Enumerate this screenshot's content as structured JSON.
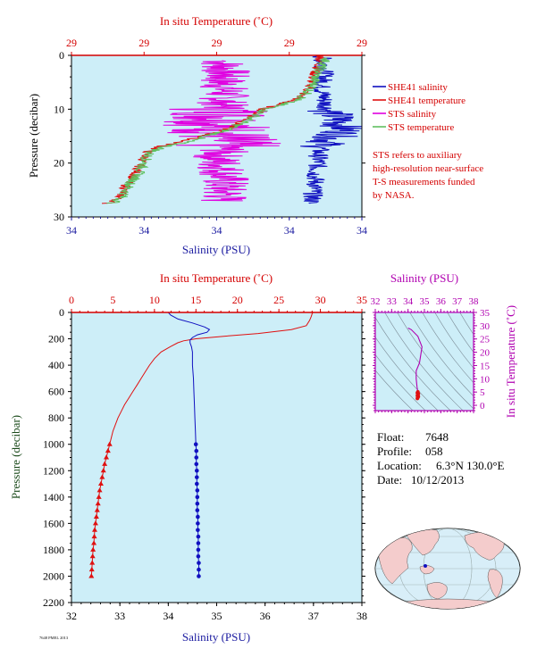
{
  "colors": {
    "plot_bg": "#cdeef8",
    "salinity": "#1010c0",
    "temperature": "#e01010",
    "sts_salinity": "#e000e0",
    "sts_temperature": "#60c060",
    "ts_accent": "#b000b0",
    "pressure_label": "#1a4a1a"
  },
  "info": {
    "float_label": "Float:",
    "float_value": "7648",
    "profile_label": "Profile:",
    "profile_value": "058",
    "location_label": "Location:",
    "location_value": "6.3°N  130.0°E",
    "date_label": "Date:",
    "date_value": "10/12/2013"
  },
  "note": {
    "lines": [
      "STS refers to auxiliary",
      "high-resolution near-surface",
      "T-S measurements funded",
      "by NASA."
    ]
  },
  "footer": {
    "text": "7648 PMEL 2013"
  },
  "chart_data": [
    {
      "id": "near-surface",
      "type": "line",
      "title": "",
      "top_axis_label": "In situ Temperature (˚C)",
      "top_ticks": [
        "29",
        "29",
        "29",
        "29",
        "29"
      ],
      "bottom_axis_label": "Salinity (PSU)",
      "bottom_ticks": [
        "34",
        "34",
        "34",
        "34",
        "34"
      ],
      "ylabel": "Pressure (decibar)",
      "y_ticks": [
        0,
        10,
        20,
        30
      ],
      "ylim": [
        0,
        30
      ],
      "legend_position": "right",
      "legend": [
        {
          "label": "SHE41 salinity",
          "color": "#1010c0"
        },
        {
          "label": "SHE41 temperature",
          "color": "#e01010"
        },
        {
          "label": "STS salinity",
          "color": "#e000e0"
        },
        {
          "label": "STS temperature",
          "color": "#60c060"
        }
      ],
      "series": [
        {
          "name": "SHE41 salinity",
          "x_frac": [
            0.86,
            0.87,
            0.87,
            0.86,
            0.87,
            0.88,
            0.92,
            0.94,
            0.88,
            0.86,
            0.85,
            0.85,
            0.84,
            0.84,
            0.83,
            0.83,
            0.82
          ],
          "p": [
            0,
            2,
            4,
            6,
            8,
            10,
            12,
            14,
            16,
            17,
            18,
            20,
            22,
            24,
            26,
            27,
            27.5
          ]
        },
        {
          "name": "SHE41 temperature",
          "x_frac": [
            0.86,
            0.85,
            0.83,
            0.82,
            0.78,
            0.66,
            0.6,
            0.52,
            0.38,
            0.3,
            0.26,
            0.24,
            0.22,
            0.19,
            0.17,
            0.15,
            0.12
          ],
          "p": [
            0,
            2,
            4,
            6,
            8,
            10,
            12,
            14,
            16,
            17,
            18,
            20,
            22,
            24,
            26,
            27,
            27.5
          ]
        },
        {
          "name": "STS salinity",
          "x_frac": [
            0.52,
            0.53,
            0.52,
            0.53,
            0.52,
            0.53,
            0.51,
            0.52,
            0.53,
            0.52,
            0.5,
            0.52,
            0.53,
            0.52,
            0.53,
            0.52
          ],
          "p": [
            1,
            3,
            5,
            7,
            9,
            11,
            13,
            15,
            17,
            18,
            19,
            21,
            23,
            25,
            26,
            27
          ]
        },
        {
          "name": "STS temperature",
          "x_frac": [
            0.88,
            0.86,
            0.84,
            0.83,
            0.79,
            0.67,
            0.61,
            0.53,
            0.4,
            0.32,
            0.27,
            0.25,
            0.23,
            0.2,
            0.18,
            0.16,
            0.14
          ],
          "p": [
            0.5,
            2,
            4,
            6,
            8,
            10,
            12,
            14,
            16,
            17,
            18,
            20,
            22,
            24,
            26,
            27,
            27.5
          ]
        }
      ]
    },
    {
      "id": "full-profile",
      "type": "line",
      "title": "",
      "top_axis_label": "In situ Temperature (˚C)",
      "temp_ticks": [
        0,
        5,
        10,
        15,
        20,
        25,
        30,
        35
      ],
      "temp_lim": [
        0,
        35
      ],
      "bottom_axis_label": "Salinity (PSU)",
      "sal_ticks": [
        32,
        33,
        34,
        35,
        36,
        37,
        38
      ],
      "sal_lim": [
        32,
        38
      ],
      "ylabel": "Pressure (decibar)",
      "y_ticks": [
        0,
        200,
        400,
        600,
        800,
        1000,
        1200,
        1400,
        1600,
        1800,
        2000,
        2200
      ],
      "ylim": [
        0,
        2200
      ],
      "series": [
        {
          "name": "temperature",
          "p": [
            0,
            10,
            30,
            60,
            100,
            130,
            160,
            180,
            200,
            215,
            230,
            260,
            300,
            350,
            400,
            450,
            500,
            550,
            600,
            650,
            700,
            750,
            800,
            850,
            900,
            950,
            1000
          ],
          "v": [
            29.1,
            29.0,
            28.9,
            28.7,
            28.3,
            26.5,
            22.5,
            18.5,
            15.0,
            13.5,
            12.8,
            11.9,
            10.8,
            10.0,
            9.4,
            8.9,
            8.4,
            7.9,
            7.4,
            6.9,
            6.4,
            6.0,
            5.6,
            5.3,
            5.0,
            4.8,
            4.6
          ]
        },
        {
          "name": "temperature-deep-points",
          "p": [
            1000,
            1050,
            1100,
            1150,
            1200,
            1250,
            1300,
            1350,
            1400,
            1450,
            1500,
            1550,
            1600,
            1650,
            1700,
            1750,
            1800,
            1850,
            1900,
            1950,
            2000
          ],
          "v": [
            4.6,
            4.4,
            4.2,
            4.0,
            3.85,
            3.7,
            3.55,
            3.4,
            3.3,
            3.2,
            3.1,
            3.0,
            2.9,
            2.8,
            2.75,
            2.7,
            2.6,
            2.55,
            2.5,
            2.45,
            2.4
          ]
        },
        {
          "name": "salinity",
          "p": [
            0,
            20,
            50,
            80,
            110,
            130,
            150,
            170,
            190,
            210,
            230,
            260,
            300,
            400,
            500,
            600,
            700,
            800,
            900,
            1000
          ],
          "v": [
            34.0,
            34.05,
            34.2,
            34.5,
            34.75,
            34.85,
            34.8,
            34.6,
            34.5,
            34.45,
            34.45,
            34.48,
            34.5,
            34.5,
            34.52,
            34.53,
            34.54,
            34.55,
            34.56,
            34.57
          ]
        },
        {
          "name": "salinity-deep-points",
          "p": [
            1000,
            1050,
            1100,
            1150,
            1200,
            1250,
            1300,
            1350,
            1400,
            1450,
            1500,
            1550,
            1600,
            1650,
            1700,
            1750,
            1800,
            1850,
            1900,
            1950,
            2000
          ],
          "v": [
            34.57,
            34.58,
            34.58,
            34.58,
            34.59,
            34.59,
            34.59,
            34.6,
            34.6,
            34.6,
            34.6,
            34.61,
            34.61,
            34.61,
            34.62,
            34.62,
            34.62,
            34.62,
            34.63,
            34.63,
            34.63
          ]
        }
      ]
    },
    {
      "id": "ts-diagram",
      "type": "line",
      "title": "",
      "top_axis_label": "Salinity (PSU)",
      "sal_ticks": [
        32,
        33,
        34,
        35,
        36,
        37,
        38
      ],
      "sal_lim": [
        32,
        38
      ],
      "right_axis_label": "In situ Temperature (˚C)",
      "temp_ticks": [
        0,
        5,
        10,
        15,
        20,
        25,
        30,
        35
      ],
      "temp_lim": [
        -2,
        35
      ],
      "series": [
        {
          "name": "ts-curve",
          "s": [
            34.0,
            34.2,
            34.6,
            34.85,
            34.7,
            34.5,
            34.5,
            34.55,
            34.6,
            34.62,
            34.63
          ],
          "t": [
            29.1,
            28.5,
            26.0,
            22.0,
            16.0,
            13.0,
            10.0,
            7.0,
            5.0,
            3.5,
            2.4
          ]
        }
      ]
    }
  ]
}
